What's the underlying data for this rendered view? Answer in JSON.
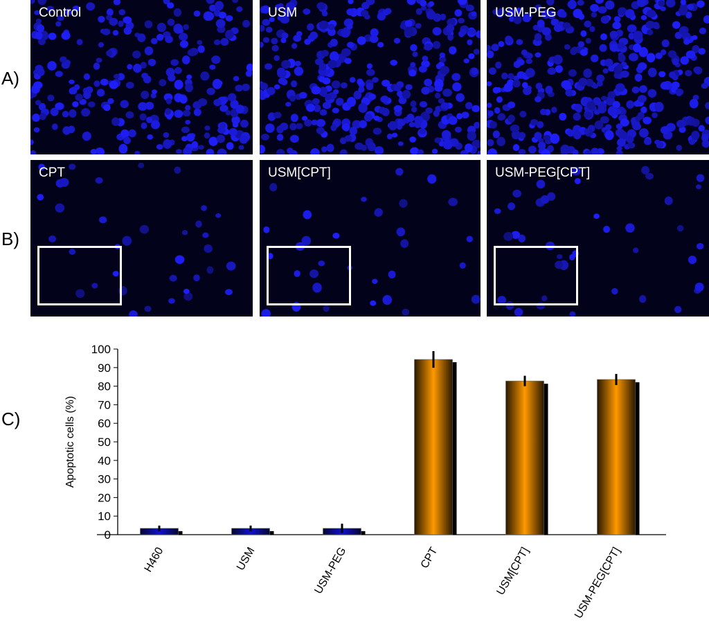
{
  "row_labels": {
    "a": "A)",
    "b": "B)",
    "c": "C)"
  },
  "panels_a": [
    {
      "label": "Control",
      "density": 0.55
    },
    {
      "label": "USM",
      "density": 0.8
    },
    {
      "label": "USM-PEG",
      "density": 0.85
    }
  ],
  "panels_b": [
    {
      "label": "CPT",
      "density": 0.08
    },
    {
      "label": "USM[CPT]",
      "density": 0.07
    },
    {
      "label": "USM-PEG[CPT]",
      "density": 0.09
    }
  ],
  "chart_data": {
    "type": "bar",
    "title": "",
    "xlabel": "",
    "ylabel": "Apoptotic cells (%)",
    "ylim": [
      0,
      100
    ],
    "yticks": [
      0,
      10,
      20,
      30,
      40,
      50,
      60,
      70,
      80,
      90,
      100
    ],
    "categories": [
      "H460",
      "USM",
      "USM-PEG",
      "CPT",
      "USM[CPT]",
      "USM-PEG[CPT]"
    ],
    "values": [
      3.4,
      3.4,
      3.4,
      94.4,
      82.8,
      83.6
    ],
    "errors": [
      1.5,
      1.5,
      2.5,
      4.5,
      2.8,
      3.0
    ],
    "colors": [
      "#1010c0",
      "#1010c0",
      "#1010c0",
      "#ff9900",
      "#ff9900",
      "#ff9900"
    ]
  }
}
